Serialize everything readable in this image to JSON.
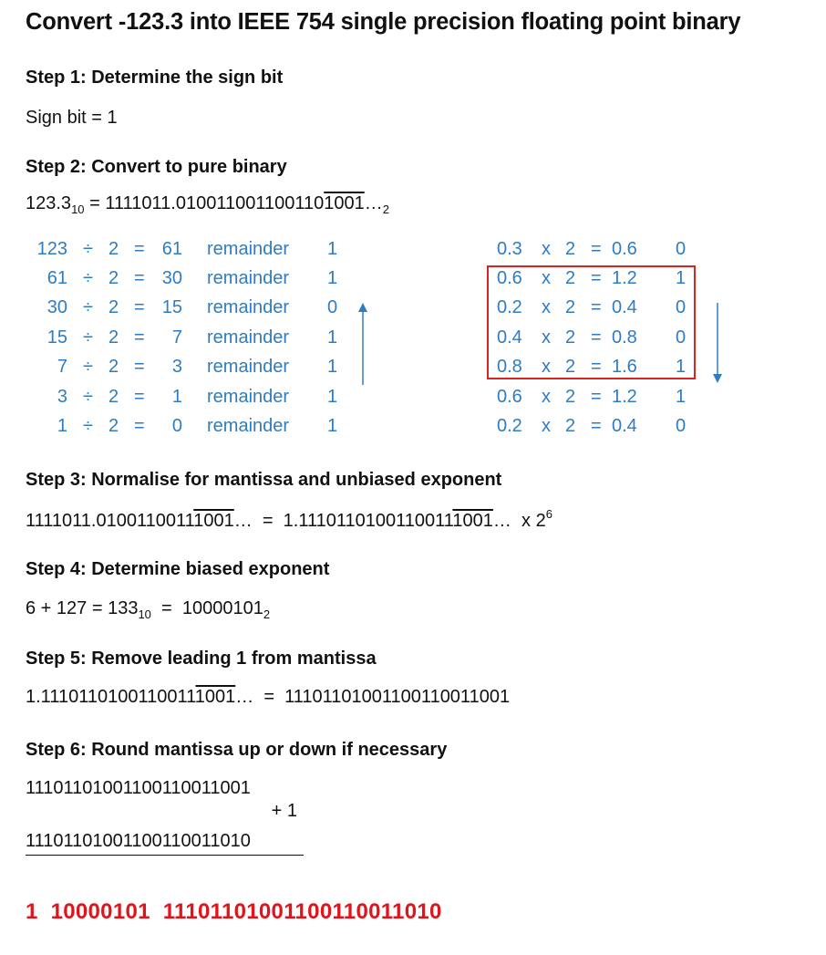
{
  "title": "Convert -123.3 into IEEE 754 single precision floating point binary",
  "step1": {
    "heading": "Step 1: Determine the sign bit",
    "text": "Sign bit  =  1"
  },
  "step2": {
    "heading": "Step 2: Convert to pure binary",
    "decimal": "123.3",
    "decimal_base": "10",
    "eq": "= ",
    "binary_prefix": "1111011.010011001100110",
    "binary_repeat": "1001",
    "binary_ellipsis": "…",
    "binary_base": "2",
    "int_division": [
      {
        "n": "123",
        "op": "÷",
        "d": "2",
        "eq": "=",
        "q": "61",
        "rem_label": "remainder",
        "rem": "1"
      },
      {
        "n": "61",
        "op": "÷",
        "d": "2",
        "eq": "=",
        "q": "30",
        "rem_label": "remainder",
        "rem": "1"
      },
      {
        "n": "30",
        "op": "÷",
        "d": "2",
        "eq": "=",
        "q": "15",
        "rem_label": "remainder",
        "rem": "0"
      },
      {
        "n": "15",
        "op": "÷",
        "d": "2",
        "eq": "=",
        "q": "7",
        "rem_label": "remainder",
        "rem": "1"
      },
      {
        "n": "7",
        "op": "÷",
        "d": "2",
        "eq": "=",
        "q": "3",
        "rem_label": "remainder",
        "rem": "1"
      },
      {
        "n": "3",
        "op": "÷",
        "d": "2",
        "eq": "=",
        "q": "1",
        "rem_label": "remainder",
        "rem": "1"
      },
      {
        "n": "1",
        "op": "÷",
        "d": "2",
        "eq": "=",
        "q": "0",
        "rem_label": "remainder",
        "rem": "1"
      }
    ],
    "frac_multiplication": [
      {
        "f": "0.3",
        "op": "x",
        "m": "2",
        "eq": "=",
        "p": "0.6",
        "bit": "0"
      },
      {
        "f": "0.6",
        "op": "x",
        "m": "2",
        "eq": "=",
        "p": "1.2",
        "bit": "1"
      },
      {
        "f": "0.2",
        "op": "x",
        "m": "2",
        "eq": "=",
        "p": "0.4",
        "bit": "0"
      },
      {
        "f": "0.4",
        "op": "x",
        "m": "2",
        "eq": "=",
        "p": "0.8",
        "bit": "0"
      },
      {
        "f": "0.8",
        "op": "x",
        "m": "2",
        "eq": "=",
        "p": "1.6",
        "bit": "1"
      },
      {
        "f": "0.6",
        "op": "x",
        "m": "2",
        "eq": "=",
        "p": "1.2",
        "bit": "1"
      },
      {
        "f": "0.2",
        "op": "x",
        "m": "2",
        "eq": "=",
        "p": "0.4",
        "bit": "0"
      }
    ]
  },
  "step3": {
    "heading": "Step 3: Normalise for mantissa and unbiased exponent",
    "left_prefix": "1111011.0100110011",
    "left_repeat": "1001",
    "left_ellipsis": "…",
    "eq": "  =  ",
    "right_prefix": "1.1110110100110011",
    "right_repeat": "1001",
    "right_ellipsis": "…",
    "times": "  x 2",
    "exponent": "6"
  },
  "step4": {
    "heading": "Step 4: Determine biased exponent",
    "text": "6 + 127 = 133",
    "base10": "10",
    "eq": "  =  10000101",
    "base2": "2"
  },
  "step5": {
    "heading": "Step 5: Remove leading 1 from mantissa",
    "left_prefix": "1.1110110100110011",
    "left_repeat": "1001",
    "left_ellipsis": "…",
    "result": "  =  11101101001100110011001"
  },
  "step6": {
    "heading": "Step 6: Round mantissa up or down if necessary",
    "addend1": "11101101001100110011001",
    "addend2": "+ 1",
    "sum": "11101101001100110011010"
  },
  "final": "1  10000101  11101101001100110011010",
  "colors": {
    "accent_blue": "#2f7cc2",
    "highlight_red": "#e0141c",
    "box_red": "#d9251f"
  }
}
